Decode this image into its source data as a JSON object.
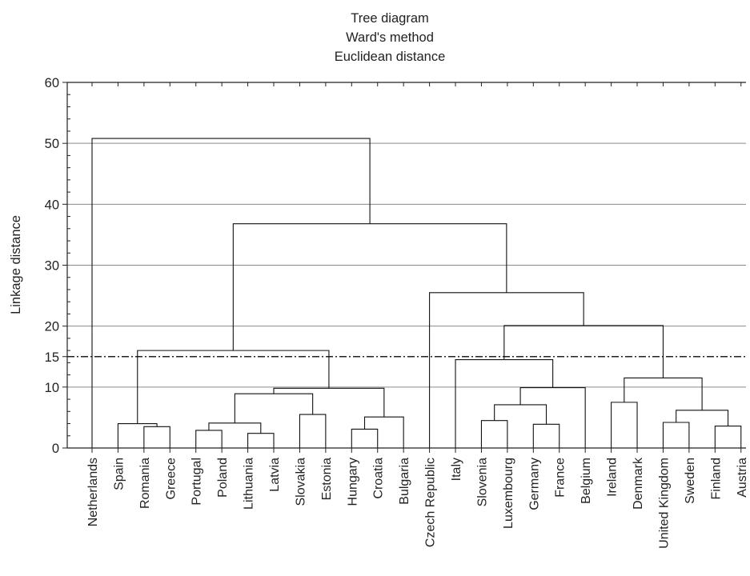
{
  "chart_data": {
    "type": "dendrogram",
    "title_lines": [
      "Tree diagram",
      "Ward's method",
      "Euclidean distance"
    ],
    "ylabel": "Linkage distance",
    "ylim": [
      0,
      60
    ],
    "y_ticks": [
      "0",
      "10",
      "15",
      "20",
      "30",
      "40",
      "50",
      "60"
    ],
    "y_tick_values": [
      0,
      10,
      15,
      20,
      30,
      40,
      50,
      60
    ],
    "grid_lines": [
      10,
      20,
      30,
      40,
      50
    ],
    "cutoff_line": 15,
    "grid": true,
    "leaves": [
      "Netherlands",
      "Spain",
      "Romania",
      "Greece",
      "Portugal",
      "Poland",
      "Lithuania",
      "Latvia",
      "Slovakia",
      "Estonia",
      "Hungary",
      "Croatia",
      "Bulgaria",
      "Czech Republic",
      "Italy",
      "Slovenia",
      "Luxembourg",
      "Germany",
      "France",
      "Belgium",
      "Ireland",
      "Denmark",
      "United Kingdom",
      "Sweden",
      "Finland",
      "Austria"
    ],
    "merges": [
      {
        "id": "n1",
        "left": "Romania",
        "right": "Greece",
        "height": 3.5
      },
      {
        "id": "n2",
        "left": "Spain",
        "right": "n1",
        "height": 4.0
      },
      {
        "id": "n3",
        "left": "Portugal",
        "right": "Poland",
        "height": 2.9
      },
      {
        "id": "n4",
        "left": "Lithuania",
        "right": "Latvia",
        "height": 2.4
      },
      {
        "id": "n5",
        "left": "n3",
        "right": "n4",
        "height": 4.1
      },
      {
        "id": "n6",
        "left": "Slovakia",
        "right": "Estonia",
        "height": 5.5
      },
      {
        "id": "n7",
        "left": "n5",
        "right": "n6",
        "height": 8.9
      },
      {
        "id": "n8",
        "left": "Hungary",
        "right": "Croatia",
        "height": 3.1
      },
      {
        "id": "n9",
        "left": "n8",
        "right": "Bulgaria",
        "height": 5.1
      },
      {
        "id": "n10",
        "left": "n7",
        "right": "n9",
        "height": 9.8
      },
      {
        "id": "n11",
        "left": "n2",
        "right": "n10",
        "height": 16.0
      },
      {
        "id": "n12",
        "left": "Slovenia",
        "right": "Luxembourg",
        "height": 4.5
      },
      {
        "id": "n13",
        "left": "Germany",
        "right": "France",
        "height": 3.9
      },
      {
        "id": "n14",
        "left": "n12",
        "right": "n13",
        "height": 7.1
      },
      {
        "id": "n15",
        "left": "n14",
        "right": "Belgium",
        "height": 9.9
      },
      {
        "id": "n16",
        "left": "Italy",
        "right": "n15",
        "height": 14.5
      },
      {
        "id": "n17",
        "left": "Ireland",
        "right": "Denmark",
        "height": 7.5
      },
      {
        "id": "n18",
        "left": "United Kingdom",
        "right": "Sweden",
        "height": 4.2
      },
      {
        "id": "n19",
        "left": "Finland",
        "right": "Austria",
        "height": 3.6
      },
      {
        "id": "n20",
        "left": "n18",
        "right": "n19",
        "height": 6.2
      },
      {
        "id": "n21",
        "left": "n17",
        "right": "n20",
        "height": 11.5
      },
      {
        "id": "n22",
        "left": "n16",
        "right": "n21",
        "height": 20.1
      },
      {
        "id": "n23",
        "left": "Czech Republic",
        "right": "n22",
        "height": 25.5
      },
      {
        "id": "n24",
        "left": "n11",
        "right": "n23",
        "height": 36.8
      },
      {
        "id": "n25",
        "left": "Netherlands",
        "right": "n24",
        "height": 50.8
      }
    ]
  }
}
